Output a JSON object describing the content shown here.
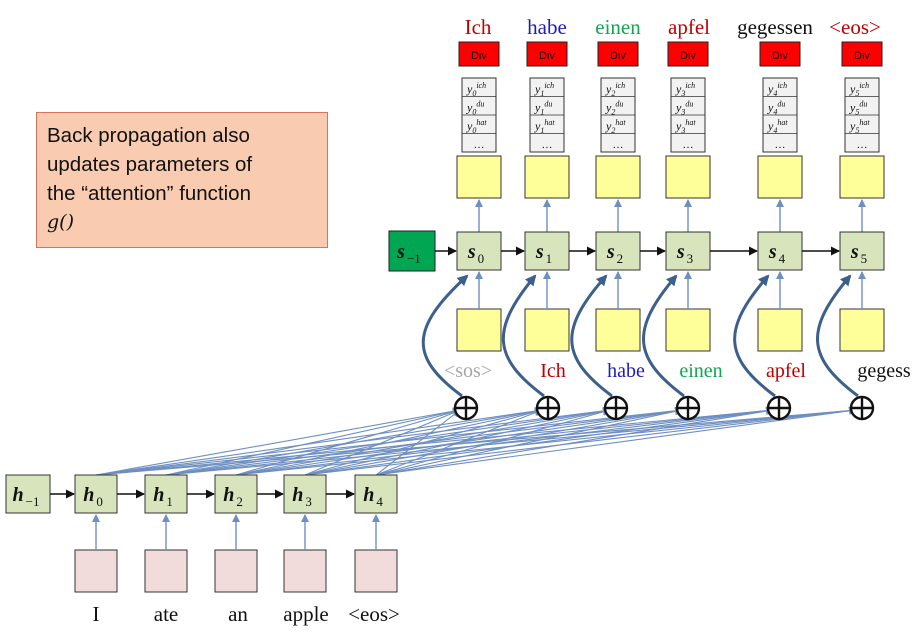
{
  "note": {
    "lines": [
      "Back propagation also",
      "updates parameters of",
      "the “attention” function"
    ],
    "function": "g()"
  },
  "colors": {
    "red": "#c00000",
    "blue": "#1f1fb4",
    "green": "#14a550",
    "gray": "#a6a6a6",
    "div_box": "#ff0000",
    "cell": "#d8e4bc",
    "s_init": "#00a651",
    "yellow": "#ffff99",
    "input_box": "#f2dcdb",
    "arrow": "#6e8fc2",
    "curve": "#3c5f8c"
  },
  "outputs": [
    {
      "text": "Ich",
      "color": "red"
    },
    {
      "text": "habe",
      "color": "blue"
    },
    {
      "text": "einen",
      "color": "green"
    },
    {
      "text": "apfel",
      "color": "red"
    },
    {
      "text": "gegessen",
      "color": "black"
    },
    {
      "text": "<eos>",
      "color": "red"
    }
  ],
  "div_label": "Div",
  "prob_rows": [
    [
      "y",
      "0",
      "ich"
    ],
    [
      "y",
      "0",
      "du"
    ],
    [
      "y",
      "0",
      "hat"
    ]
  ],
  "prob_sub": [
    "0",
    "1",
    "2",
    "3",
    "4",
    "5"
  ],
  "prob_sup": [
    "ich",
    "du",
    "hat"
  ],
  "ellipsis": "…",
  "decoder_states": {
    "initial": {
      "base": "s",
      "sub": "−1"
    },
    "states": [
      {
        "base": "s",
        "sub": "0"
      },
      {
        "base": "s",
        "sub": "1"
      },
      {
        "base": "s",
        "sub": "2"
      },
      {
        "base": "s",
        "sub": "3"
      },
      {
        "base": "s",
        "sub": "4"
      },
      {
        "base": "s",
        "sub": "5"
      }
    ]
  },
  "decoder_inputs": [
    {
      "text": "<sos>",
      "color": "gray"
    },
    {
      "text": "Ich",
      "color": "red"
    },
    {
      "text": "habe",
      "color": "blue"
    },
    {
      "text": "einen",
      "color": "green"
    },
    {
      "text": "apfel",
      "color": "red"
    },
    {
      "text": "gegess",
      "color": "black"
    }
  ],
  "sum_symbol": "⊕",
  "encoder_states": {
    "initial": {
      "base": "h",
      "sub": "−1"
    },
    "states": [
      {
        "base": "h",
        "sub": "0"
      },
      {
        "base": "h",
        "sub": "1"
      },
      {
        "base": "h",
        "sub": "2"
      },
      {
        "base": "h",
        "sub": "3"
      },
      {
        "base": "h",
        "sub": "4"
      }
    ]
  },
  "input_words": [
    "I",
    "ate",
    "an",
    "apple",
    "<eos>"
  ]
}
